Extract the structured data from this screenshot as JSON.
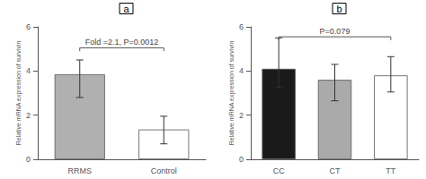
{
  "chart_data": [
    {
      "type": "bar",
      "title": "a",
      "categories": [
        "RRMS",
        "Control"
      ],
      "values": [
        3.85,
        1.35
      ],
      "errors_upper": [
        0.65,
        0.6
      ],
      "errors_lower": [
        1.05,
        0.65
      ],
      "colors": [
        "#b0b0b0",
        "#ffffff"
      ],
      "ylabel": "Relative mRNA expression of survivin",
      "ylim": [
        0,
        6
      ],
      "yticks": [
        0,
        2,
        4,
        6
      ],
      "grid": false,
      "annotations": [
        {
          "text": "Fold =2.1, P=0.0012",
          "x": [
            "RRMS",
            "Control"
          ],
          "y": 5.05
        }
      ]
    },
    {
      "type": "bar",
      "title": "b",
      "categories": [
        "CC",
        "CT",
        "TT"
      ],
      "values": [
        4.1,
        3.6,
        3.8
      ],
      "errors_upper": [
        1.4,
        0.7,
        0.85
      ],
      "errors_lower": [
        0.85,
        0.95,
        0.75
      ],
      "colors": [
        "#1a1a1a",
        "#aaaaaa",
        "#ffffff"
      ],
      "ylabel": "Relative mRNA expression of survivin",
      "ylim": [
        0,
        6
      ],
      "yticks": [
        0,
        2,
        4,
        6
      ],
      "grid": false,
      "annotations": [
        {
          "text": "P=0.079",
          "x": [
            "CC",
            "TT"
          ],
          "y": 5.55
        }
      ]
    }
  ]
}
